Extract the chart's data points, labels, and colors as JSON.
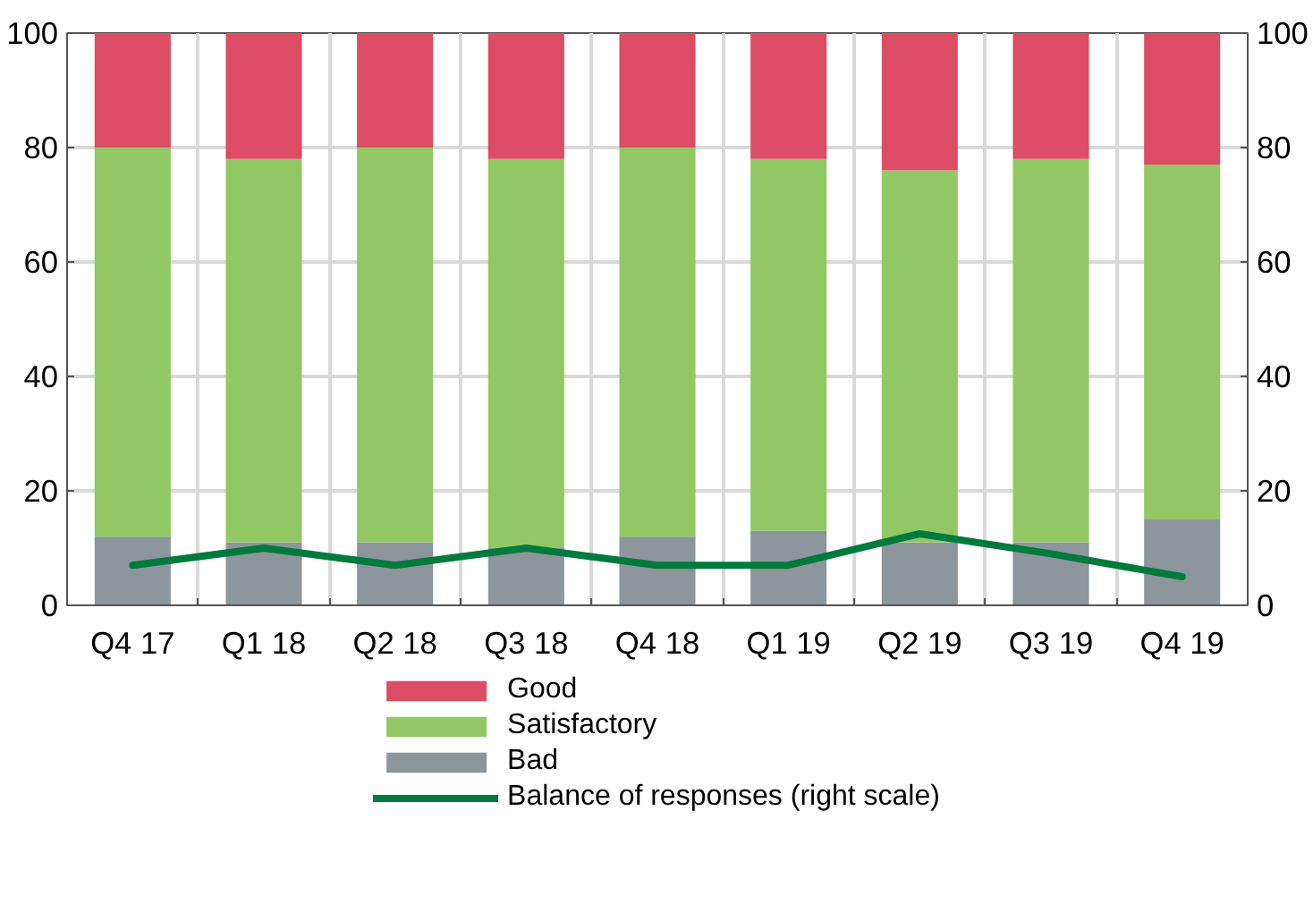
{
  "chart_data": {
    "type": "bar",
    "stacked": true,
    "categories": [
      "Q4 17",
      "Q1 18",
      "Q2 18",
      "Q3 18",
      "Q4 18",
      "Q1 19",
      "Q2 19",
      "Q3 19",
      "Q4 19"
    ],
    "series": [
      {
        "name": "Bad",
        "color": "#8c969b",
        "values": [
          12,
          11,
          11,
          10,
          12,
          13,
          11,
          11,
          15
        ]
      },
      {
        "name": "Satisfactory",
        "color": "#92c864",
        "values": [
          68,
          67,
          69,
          68,
          68,
          65,
          65,
          67,
          62
        ]
      },
      {
        "name": "Good",
        "color": "#dc4c64",
        "values": [
          20,
          22,
          20,
          22,
          20,
          22,
          24,
          22,
          23
        ]
      },
      {
        "name": "Balance of responses (right scale)",
        "type": "line",
        "axis": "y2",
        "color": "#007a3d",
        "values": [
          7,
          10,
          7,
          10,
          7,
          7,
          12.5,
          9,
          5
        ]
      }
    ],
    "ylim": [
      0,
      100
    ],
    "yticks": [
      0,
      20,
      40,
      60,
      80,
      100
    ],
    "y2lim": [
      0,
      100
    ],
    "y2ticks": [
      0,
      20,
      40,
      60,
      80,
      100
    ],
    "grid": true,
    "legend": "bottom"
  }
}
